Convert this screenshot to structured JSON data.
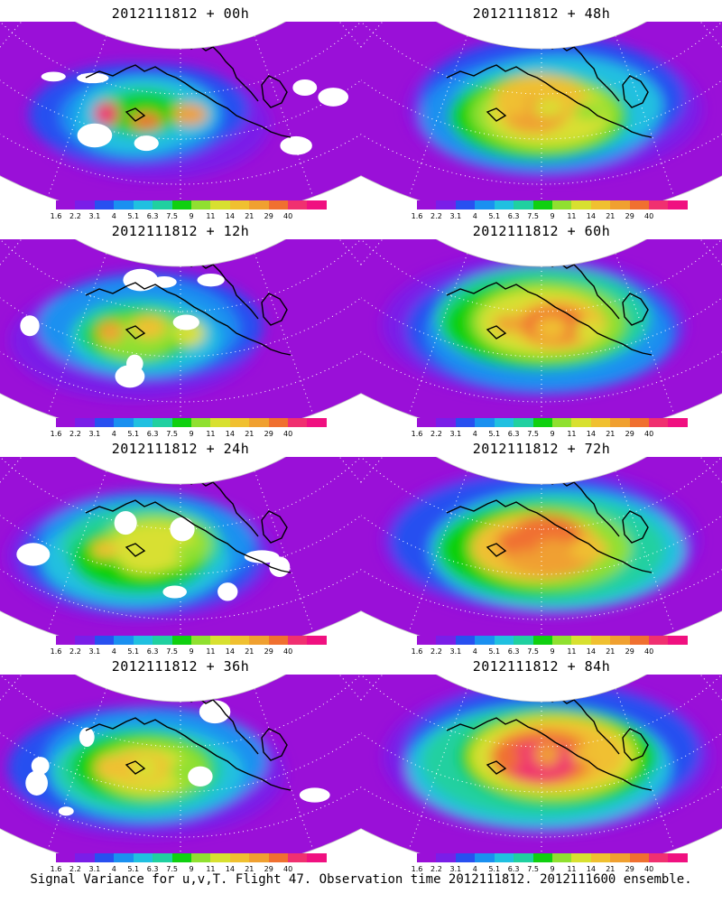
{
  "colorbar": {
    "labels": [
      "1.6",
      "2.2",
      "3.1",
      "4",
      "5.1",
      "6.3",
      "7.5",
      "9",
      "11",
      "14",
      "21",
      "29",
      "40"
    ],
    "colors": [
      "#9a10d8",
      "#7a1ee8",
      "#2850f0",
      "#1a90f0",
      "#20c0e0",
      "#20d0a0",
      "#10d010",
      "#90e030",
      "#d8e030",
      "#f0c030",
      "#f0a030",
      "#f07030",
      "#f03070",
      "#f01080"
    ]
  },
  "panels": [
    {
      "id": "00h",
      "title": "2012111812 + 00h",
      "col": 0,
      "row": 0,
      "intensity": 0.25,
      "peak": 0.9
    },
    {
      "id": "12h",
      "title": "2012111812 + 12h",
      "col": 0,
      "row": 1,
      "intensity": 0.35,
      "peak": 0.75
    },
    {
      "id": "24h",
      "title": "2012111812 + 24h",
      "col": 0,
      "row": 2,
      "intensity": 0.45,
      "peak": 0.7
    },
    {
      "id": "36h",
      "title": "2012111812 + 36h",
      "col": 0,
      "row": 3,
      "intensity": 0.5,
      "peak": 0.7
    },
    {
      "id": "48h",
      "title": "2012111812 + 48h",
      "col": 1,
      "row": 0,
      "intensity": 0.6,
      "peak": 0.72
    },
    {
      "id": "60h",
      "title": "2012111812 + 60h",
      "col": 1,
      "row": 1,
      "intensity": 0.65,
      "peak": 0.75
    },
    {
      "id": "72h",
      "title": "2012111812 + 72h",
      "col": 1,
      "row": 2,
      "intensity": 0.72,
      "peak": 0.82
    },
    {
      "id": "84h",
      "title": "2012111812 + 84h",
      "col": 1,
      "row": 3,
      "intensity": 0.78,
      "peak": 0.85
    }
  ],
  "footer": "Signal Variance for u,v,T. Flight 47. Observation time 2012111812. 2012111600 ensemble."
}
